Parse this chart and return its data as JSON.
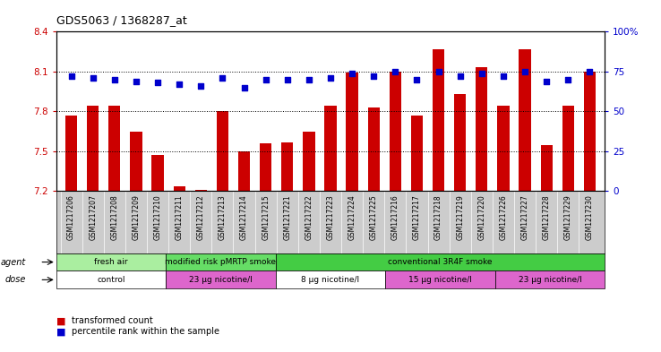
{
  "title": "GDS5063 / 1368287_at",
  "samples": [
    "GSM1217206",
    "GSM1217207",
    "GSM1217208",
    "GSM1217209",
    "GSM1217210",
    "GSM1217211",
    "GSM1217212",
    "GSM1217213",
    "GSM1217214",
    "GSM1217215",
    "GSM1217221",
    "GSM1217222",
    "GSM1217223",
    "GSM1217224",
    "GSM1217225",
    "GSM1217216",
    "GSM1217217",
    "GSM1217218",
    "GSM1217219",
    "GSM1217220",
    "GSM1217226",
    "GSM1217227",
    "GSM1217228",
    "GSM1217229",
    "GSM1217230"
  ],
  "bar_values": [
    7.77,
    7.84,
    7.84,
    7.65,
    7.47,
    7.24,
    7.21,
    7.8,
    7.5,
    7.56,
    7.57,
    7.65,
    7.84,
    8.09,
    7.83,
    8.1,
    7.77,
    8.27,
    7.93,
    8.13,
    7.84,
    8.27,
    7.55,
    7.84,
    8.1
  ],
  "percentile_values": [
    72,
    71,
    70,
    69,
    68,
    67,
    66,
    71,
    65,
    70,
    70,
    70,
    71,
    74,
    72,
    75,
    70,
    75,
    72,
    74,
    72,
    75,
    69,
    70,
    75
  ],
  "ylim_left": [
    7.2,
    8.4
  ],
  "ylim_right": [
    0,
    100
  ],
  "yticks_left": [
    7.2,
    7.5,
    7.8,
    8.1,
    8.4
  ],
  "yticks_right": [
    0,
    25,
    50,
    75,
    100
  ],
  "ytick_right_labels": [
    "0",
    "25",
    "50",
    "75",
    "100%"
  ],
  "hlines": [
    7.5,
    7.8,
    8.1
  ],
  "bar_color": "#cc0000",
  "percentile_color": "#0000cc",
  "agent_groups": [
    {
      "label": "fresh air",
      "start": 0,
      "end": 5,
      "color": "#aaeea0"
    },
    {
      "label": "modified risk pMRTP smoke",
      "start": 5,
      "end": 10,
      "color": "#66dd66"
    },
    {
      "label": "conventional 3R4F smoke",
      "start": 10,
      "end": 25,
      "color": "#44cc44"
    }
  ],
  "dose_groups": [
    {
      "label": "control",
      "start": 0,
      "end": 5,
      "color": "#ffffff"
    },
    {
      "label": "23 μg nicotine/l",
      "start": 5,
      "end": 10,
      "color": "#dd66cc"
    },
    {
      "label": "8 μg nicotine/l",
      "start": 10,
      "end": 15,
      "color": "#ffffff"
    },
    {
      "label": "15 μg nicotine/l",
      "start": 15,
      "end": 20,
      "color": "#dd66cc"
    },
    {
      "label": "23 μg nicotine/l",
      "start": 20,
      "end": 25,
      "color": "#dd66cc"
    }
  ],
  "legend_items": [
    {
      "label": "transformed count",
      "color": "#cc0000"
    },
    {
      "label": "percentile rank within the sample",
      "color": "#0000cc"
    }
  ],
  "agent_label": "agent",
  "dose_label": "dose",
  "background_color": "#ffffff",
  "plot_bg_color": "#ffffff",
  "xtick_bg_color": "#cccccc"
}
